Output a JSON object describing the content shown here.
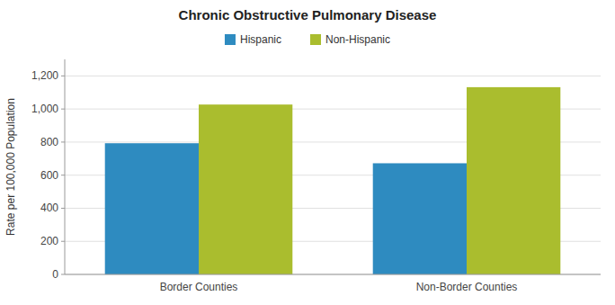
{
  "chart_data": {
    "type": "bar",
    "title": "Chronic Obstructive Pulmonary Disease",
    "categories": [
      "Border Counties",
      "Non-Border Counties"
    ],
    "series": [
      {
        "name": "Hispanic",
        "color": "#2E8BC0",
        "values": [
          793,
          672
        ]
      },
      {
        "name": "Non-Hispanic",
        "color": "#AABD2E",
        "values": [
          1027,
          1132
        ]
      }
    ],
    "y_label": "Rate per 100,000 Population",
    "ylim": [
      0,
      1300
    ],
    "yticks": [
      0,
      200,
      400,
      600,
      800,
      {
        "value": 1000,
        "label": "1,000"
      },
      {
        "value": 1200,
        "label": "1,200"
      }
    ],
    "grid": true,
    "legend": "top"
  }
}
